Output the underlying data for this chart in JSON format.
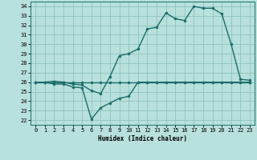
{
  "xlabel": "Humidex (Indice chaleur)",
  "bg_color": "#b8e0dc",
  "grid_color": "#90c4c0",
  "line_color": "#1a6e6a",
  "xlim": [
    -0.5,
    23.5
  ],
  "ylim": [
    21.5,
    34.5
  ],
  "yticks": [
    22,
    23,
    24,
    25,
    26,
    27,
    28,
    29,
    30,
    31,
    32,
    33,
    34
  ],
  "xticks": [
    0,
    1,
    2,
    3,
    4,
    5,
    6,
    7,
    8,
    9,
    10,
    11,
    12,
    13,
    14,
    15,
    16,
    17,
    18,
    19,
    20,
    21,
    22,
    23
  ],
  "line1_y": [
    26,
    26,
    26,
    26,
    26,
    26,
    26,
    26,
    26,
    26,
    26,
    26,
    26,
    26,
    26,
    26,
    26,
    26,
    26,
    26,
    26,
    26,
    26,
    26
  ],
  "line2_y": [
    26,
    26,
    25.8,
    25.8,
    25.5,
    25.4,
    22.1,
    23.3,
    23.8,
    24.3,
    24.5,
    26,
    26,
    26,
    26,
    26,
    26,
    26,
    26,
    26,
    26,
    26,
    26,
    26
  ],
  "line3_y": [
    26,
    26,
    26.1,
    26.0,
    25.8,
    25.7,
    25.1,
    24.8,
    26.6,
    28.8,
    29.0,
    29.5,
    31.6,
    31.8,
    33.3,
    32.7,
    32.5,
    34.0,
    33.8,
    33.8,
    33.2,
    30.0,
    26.3,
    26.2
  ]
}
